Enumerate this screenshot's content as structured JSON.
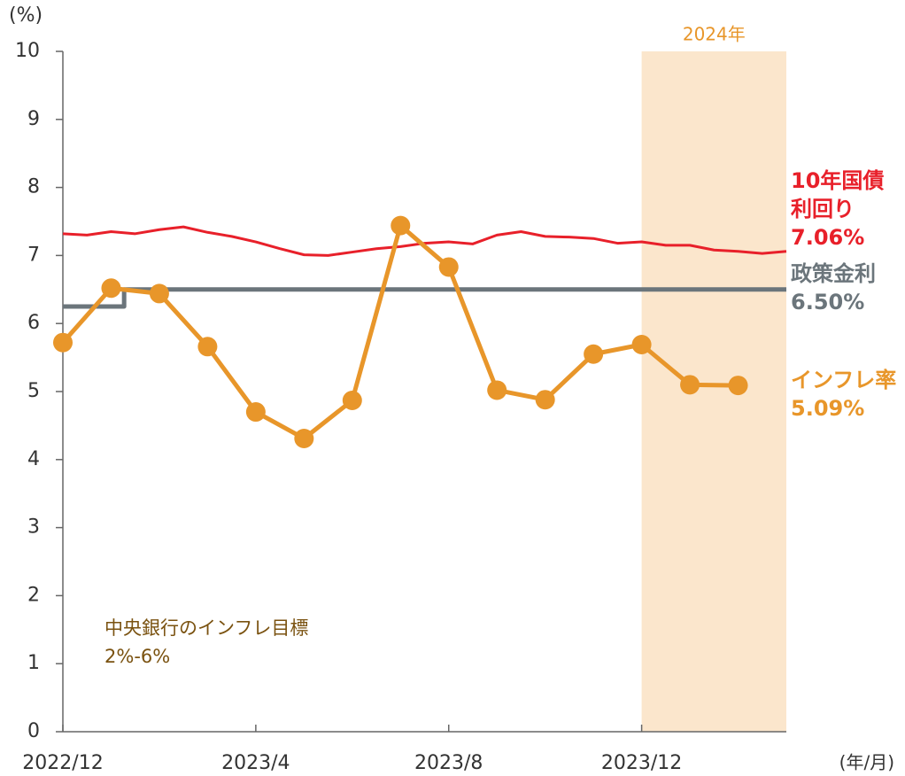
{
  "chart_data": {
    "type": "line",
    "y_unit": "(%)",
    "x_unit": "(年/月)",
    "xlim": [
      0,
      15
    ],
    "xticks": [
      {
        "value": 0,
        "label": "2022/12"
      },
      {
        "value": 4,
        "label": "2023/4"
      },
      {
        "value": 8,
        "label": "2023/8"
      },
      {
        "value": 12,
        "label": "2023/12"
      }
    ],
    "ylim": [
      0,
      10
    ],
    "yticks": [
      0,
      1,
      2,
      3,
      4,
      5,
      6,
      7,
      8,
      9,
      10
    ],
    "shaded_region": {
      "label": "2024年",
      "start": 12,
      "end": 15,
      "color": "#fbe6cc"
    },
    "annotation": [
      "中央銀行のインフレ目標",
      "2%-6%"
    ],
    "series": [
      {
        "name": [
          "10年国債",
          "利回り"
        ],
        "end_label": "7.06%",
        "color": "#e8202a",
        "markers": false,
        "x": [
          0,
          0.5,
          1,
          1.5,
          2,
          2.5,
          3,
          3.5,
          4,
          4.5,
          5,
          5.5,
          6,
          6.5,
          7,
          7.5,
          8,
          8.5,
          9,
          9.5,
          10,
          10.5,
          11,
          11.5,
          12,
          12.5,
          13,
          13.5,
          14,
          14.5,
          15
        ],
        "values": [
          7.32,
          7.3,
          7.35,
          7.32,
          7.38,
          7.42,
          7.34,
          7.28,
          7.2,
          7.1,
          7.01,
          7.0,
          7.05,
          7.1,
          7.13,
          7.18,
          7.2,
          7.17,
          7.3,
          7.35,
          7.28,
          7.27,
          7.25,
          7.18,
          7.2,
          7.15,
          7.15,
          7.08,
          7.06,
          7.03,
          7.06
        ]
      },
      {
        "name": [
          "政策金利"
        ],
        "end_label": "6.50%",
        "color": "#6b757b",
        "markers": false,
        "x": [
          0,
          1.27,
          1.27,
          15
        ],
        "values": [
          6.25,
          6.25,
          6.5,
          6.5
        ]
      },
      {
        "name": [
          "インフレ率"
        ],
        "end_label": "5.09%",
        "color": "#e8962a",
        "markers": true,
        "x": [
          0,
          1,
          2,
          3,
          4,
          5,
          6,
          7,
          8,
          9,
          10,
          11,
          12,
          13,
          14
        ],
        "values": [
          5.72,
          6.52,
          6.44,
          5.66,
          4.7,
          4.31,
          4.87,
          7.44,
          6.83,
          5.02,
          4.88,
          5.55,
          5.69,
          5.1,
          5.09
        ]
      }
    ]
  }
}
